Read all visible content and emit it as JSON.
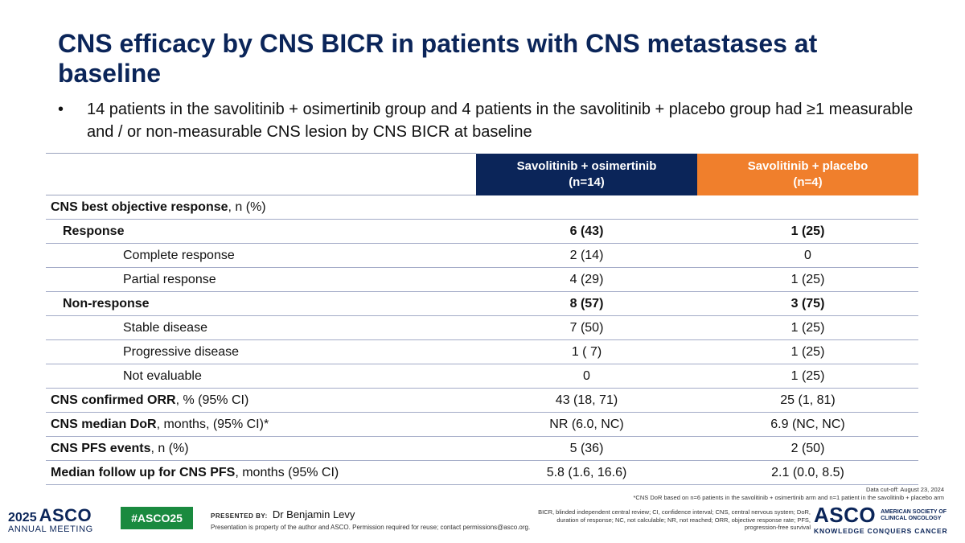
{
  "slide": {
    "title": "CNS efficacy by CNS BICR in patients with CNS metastases at baseline",
    "bullet": "14 patients in the savolitinib + osimertinib group and 4 patients in the savolitinib + placebo group had ≥1 measurable and / or non-measurable CNS lesion by CNS BICR at baseline"
  },
  "table": {
    "headers": {
      "col2_line1": "Savolitinib + osimertinib",
      "col2_line2": "(n=14)",
      "col3_line1": "Savolitinib + placebo",
      "col3_line2": "(n=4)"
    },
    "rows": [
      {
        "label_bold": "CNS best objective response",
        "label_rest": ", n (%)",
        "col2": "",
        "col3": ""
      },
      {
        "label_bold": "Response",
        "label_rest": "",
        "col2": "6 (43)",
        "col3": "1 (25)"
      },
      {
        "label_bold": "",
        "label_rest": "Complete response",
        "col2": "2 (14)",
        "col3": "0"
      },
      {
        "label_bold": "",
        "label_rest": "Partial response",
        "col2": "4 (29)",
        "col3": "1 (25)"
      },
      {
        "label_bold": "Non-response",
        "label_rest": "",
        "col2": "8 (57)",
        "col3": "3 (75)"
      },
      {
        "label_bold": "",
        "label_rest": "Stable disease",
        "col2": "7 (50)",
        "col3": "1 (25)"
      },
      {
        "label_bold": "",
        "label_rest": "Progressive disease",
        "col2": "1 ( 7)",
        "col3": "1 (25)"
      },
      {
        "label_bold": "",
        "label_rest": "Not evaluable",
        "col2": "0",
        "col3": "1 (25)"
      },
      {
        "label_bold": "CNS confirmed ORR",
        "label_rest": ", % (95% CI)",
        "col2": "43 (18, 71)",
        "col3": "25 (1, 81)"
      },
      {
        "label_bold": "CNS median DoR",
        "label_rest": ", months, (95% CI)*",
        "col2": "NR (6.0, NC)",
        "col3": "6.9 (NC, NC)"
      },
      {
        "label_bold": "CNS PFS events",
        "label_rest": ", n (%)",
        "col2": "5 (36)",
        "col3": "2 (50)"
      },
      {
        "label_bold": "Median follow up for CNS PFS",
        "label_rest": ", months (95% CI)",
        "col2": "5.8 (1.6, 16.6)",
        "col3": "2.1 (0.0, 8.5)"
      }
    ]
  },
  "footnotes": {
    "data_cutoff": "Data cut-off: August 23, 2024",
    "dor_note": "*CNS DoR based on n=6 patients in the savolitinib + osimertinib arm and n=1 patient in the savolitinib + placebo arm",
    "abbreviations": "BICR, blinded independent central review; CI, confidence interval; CNS, central nervous system; DoR, duration of response; NC, not calculable; NR, not reached; ORR, objective response rate; PFS, progression-free survival"
  },
  "footer": {
    "meeting_year": "2025",
    "meeting_brand": "ASCO",
    "meeting_sub": "ANNUAL MEETING",
    "hashtag": "#ASCO25",
    "presented_by_label": "PRESENTED BY:",
    "presenter_name": "Dr Benjamin Levy",
    "property_notice": "Presentation is property of the author and ASCO. Permission required for reuse; contact permissions@asco.org.",
    "logo_word": "ASCO",
    "logo_society_line1": "AMERICAN SOCIETY OF",
    "logo_society_line2": "CLINICAL ONCOLOGY",
    "logo_tagline": "KNOWLEDGE CONQUERS CANCER"
  },
  "colors": {
    "navy": "#0b2559",
    "orange": "#f07f2c",
    "green": "#1a8a3f"
  }
}
